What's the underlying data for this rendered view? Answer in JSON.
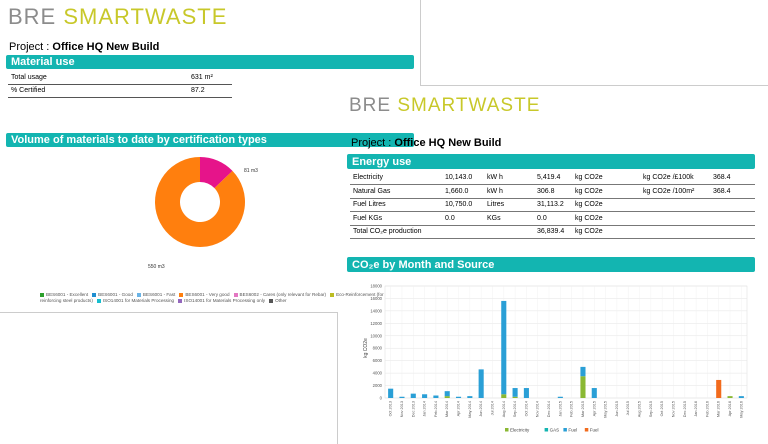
{
  "logo": {
    "bre": "BRE",
    "smartwaste": "SMARTWASTE"
  },
  "project": {
    "label": "Project :",
    "name": "Office HQ New Build"
  },
  "material": {
    "header": "Material use",
    "rows": [
      {
        "label": "Total usage",
        "value": "631 m²"
      },
      {
        "label": "% Certified",
        "value": "87.2"
      }
    ]
  },
  "volume": {
    "header": "Volume of materials to date by certification types",
    "labels": {
      "small": "81 m3",
      "large": "550 m3"
    },
    "legend": [
      {
        "label": "BES6001 - Excellent",
        "color": "#2ca02c"
      },
      {
        "label": "BES6001 - Good",
        "color": "#1f8fd1"
      },
      {
        "label": "BES6001 - Fast",
        "color": "#6bb4e6"
      },
      {
        "label": "BES6001 - Very good",
        "color": "#ff7f0e"
      },
      {
        "label": "BES6002 - Cares (only relevant for Rebar)",
        "color": "#e377c2"
      },
      {
        "label": "Eco-Reinforcement (for reinforcing steel products)",
        "color": "#bcbd22"
      },
      {
        "label": "ISO14001 for Materials Processing",
        "color": "#17becf"
      },
      {
        "label": "ISO14001 for Materials Processing only",
        "color": "#9467bd"
      },
      {
        "label": "Other",
        "color": "#555555"
      }
    ]
  },
  "energy": {
    "header": "Energy use",
    "rows": [
      {
        "name": "Electricity",
        "qty": "10,143.0",
        "unit": "kW h",
        "co2": "5,419.4",
        "co2unit": "kg CO2e",
        "metric": "kg CO2e /£100k",
        "metric_val": "368.4"
      },
      {
        "name": "Natural Gas",
        "qty": "1,660.0",
        "unit": "kW h",
        "co2": "306.8",
        "co2unit": "kg CO2e",
        "metric": "kg CO2e /100m²",
        "metric_val": "368.4"
      },
      {
        "name": "Fuel Litres",
        "qty": "10,750.0",
        "unit": "Litres",
        "co2": "31,113.2",
        "co2unit": "kg CO2e",
        "metric": "",
        "metric_val": ""
      },
      {
        "name": "Fuel KGs",
        "qty": "0.0",
        "unit": "KGs",
        "co2": "0.0",
        "co2unit": "kg CO2e",
        "metric": "",
        "metric_val": ""
      },
      {
        "name": "Total CO₂e production",
        "qty": "",
        "unit": "",
        "co2": "36,839.4",
        "co2unit": "kg CO2e",
        "metric": "",
        "metric_val": ""
      }
    ]
  },
  "co2chart": {
    "header": "CO₂e by Month and Source"
  },
  "chart_data": [
    {
      "type": "pie",
      "donut": true,
      "categories": [
        "BES6001 - Very good",
        "BES6002 - Cares (only relevant for Rebar)"
      ],
      "values": [
        550,
        81
      ],
      "colors": [
        "#ff7f0e",
        "#e6148a"
      ],
      "data_labels": [
        "550 m3",
        "81 m3"
      ]
    },
    {
      "type": "bar",
      "stacked": true,
      "ylabel": "kg CO2e",
      "ylim": [
        0,
        18000
      ],
      "yticks": [
        0,
        2000,
        4000,
        6000,
        8000,
        10000,
        12000,
        14000,
        16000,
        18000
      ],
      "categories": [
        "Oct 2013",
        "Nov 2013",
        "Dec 2013",
        "Jan 2014",
        "Feb 2014",
        "Mar 2014",
        "Apr 2014",
        "May 2014",
        "Jun 2014",
        "Jul 2014",
        "Aug 2014",
        "Sep 2014",
        "Oct 2014",
        "Nov 2014",
        "Dec 2014",
        "Jan 2015",
        "Feb 2015",
        "Mar 2015",
        "Apr 2015",
        "May 2015",
        "Jun 2015",
        "Jul 2015",
        "Aug 2015",
        "Sep 2015",
        "Oct 2015",
        "Nov 2015",
        "Dec 2015",
        "Jan 2016",
        "Feb 2016",
        "Mar 2016",
        "Apr 2016",
        "May 2016"
      ],
      "series": [
        {
          "name": "Electricity",
          "color": "#8ab833",
          "values": [
            0,
            0,
            0,
            0,
            0,
            300,
            0,
            0,
            0,
            0,
            600,
            200,
            0,
            0,
            0,
            0,
            0,
            3500,
            0,
            0,
            0,
            0,
            0,
            0,
            0,
            0,
            0,
            0,
            0,
            0,
            300,
            0
          ]
        },
        {
          "name": "GAS",
          "color": "#13b5b1",
          "values": [
            0,
            0,
            0,
            0,
            0,
            0,
            0,
            0,
            0,
            0,
            0,
            0,
            0,
            0,
            0,
            0,
            0,
            0,
            0,
            0,
            0,
            0,
            0,
            0,
            0,
            0,
            0,
            0,
            0,
            0,
            0,
            0
          ]
        },
        {
          "name": "Fuel",
          "color": "#2a9fd6",
          "values": [
            1500,
            200,
            700,
            600,
            400,
            800,
            200,
            300,
            4600,
            0,
            15000,
            1400,
            1600,
            0,
            0,
            200,
            0,
            1500,
            1600,
            0,
            0,
            0,
            0,
            0,
            0,
            0,
            0,
            0,
            0,
            0,
            0,
            300
          ]
        },
        {
          "name": "Fuel",
          "color": "#f26b1d",
          "values": [
            0,
            0,
            0,
            0,
            0,
            0,
            0,
            0,
            0,
            0,
            0,
            0,
            0,
            0,
            0,
            0,
            0,
            0,
            0,
            0,
            0,
            0,
            0,
            0,
            0,
            0,
            0,
            0,
            0,
            2900,
            0,
            0
          ]
        }
      ],
      "legend": [
        "Electricity",
        "GAS",
        "Fuel",
        "Fuel"
      ]
    }
  ]
}
